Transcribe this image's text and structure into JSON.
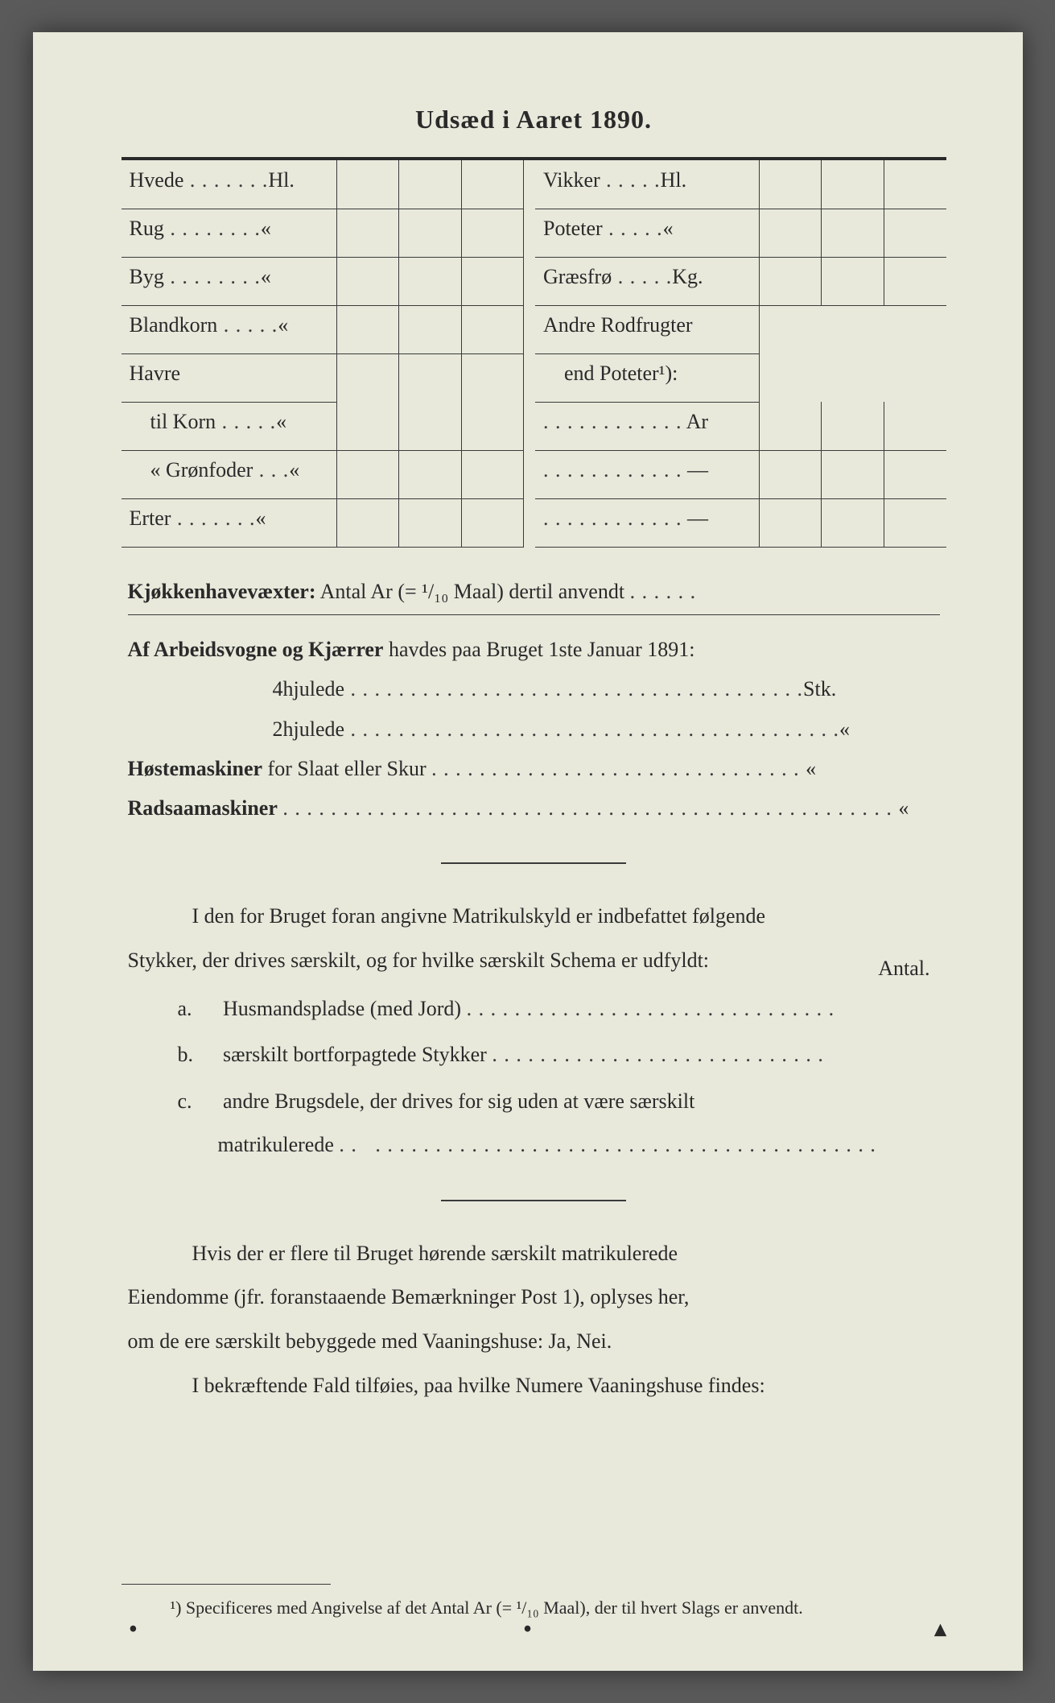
{
  "title": "Udsæd i Aaret 1890.",
  "table": {
    "left": [
      {
        "label": "Hvede",
        "unit": "Hl."
      },
      {
        "label": "Rug",
        "unit": "«"
      },
      {
        "label": "Byg",
        "unit": "«"
      },
      {
        "label": "Blandkorn",
        "unit": "«"
      },
      {
        "label": "Havre",
        "unit": ""
      },
      {
        "label": "til Korn",
        "unit": "«",
        "indent": true
      },
      {
        "label": "«  Grønfoder",
        "unit": "«",
        "indent": true
      },
      {
        "label": "Erter",
        "unit": "«"
      }
    ],
    "right": [
      {
        "label": "Vikker",
        "unit": "Hl."
      },
      {
        "label": "Poteter",
        "unit": "«"
      },
      {
        "label": "Græsfrø",
        "unit": "Kg."
      },
      {
        "label": "Andre Rodfrugter",
        "unit": ""
      },
      {
        "label": "end Poteter¹):",
        "unit": "",
        "indent": true
      },
      {
        "label": "",
        "unit": "Ar",
        "dotted": true
      },
      {
        "label": "",
        "unit": "—",
        "dotted": true
      },
      {
        "label": "",
        "unit": "—",
        "dotted": true
      }
    ]
  },
  "kjokken_label": "Kjøkkenhavevæxter:",
  "kjokken_text": "Antal Ar (= ¹/₁₀ Maal) dertil anvendt",
  "arbeids_label": "Af Arbeidsvogne og Kjærrer",
  "arbeids_text": "havdes paa Bruget 1ste Januar 1891:",
  "hjul4": "4hjulede",
  "hjul4_unit": "Stk.",
  "hjul2": "2hjulede",
  "hjul2_unit": "«",
  "hoste_label": "Høstemaskiner",
  "hoste_text": "for Slaat eller Skur",
  "hoste_unit": "«",
  "rad_label": "Radsaamaskiner",
  "rad_unit": "«",
  "para1a": "I den for Bruget foran angivne Matrikulskyld er indbefattet følgende",
  "para1b": "Stykker, der drives særskilt, og for hvilke særskilt Schema er udfyldt:",
  "antal": "Antal.",
  "item_a_letter": "a.",
  "item_a": "Husmandspladse (med Jord)",
  "item_b_letter": "b.",
  "item_b": "særskilt bortforpagtede Stykker",
  "item_c_letter": "c.",
  "item_c1": "andre Brugsdele,",
  "item_c2": "der drives for sig uden at være særskilt",
  "item_c3": "matrikulerede",
  "para2a": "Hvis der er flere til Bruget hørende særskilt matrikulerede",
  "para2b": "Eiendomme (jfr. foranstaaende Bemærkninger Post 1), oplyses her,",
  "para2c_pre": "om",
  "para2c_mid": "de ere særskilt bebyggede med",
  "para2c_bold": "Vaaningshuse:",
  "para2c_end": "Ja, Nei.",
  "para3a": "I bekræftende Fald tilføies, paa",
  "para3b": "hvilke Numere",
  "para3c": "Vaaningshuse findes:",
  "footnote": "¹) Specificeres med Angivelse af det Antal Ar (= ¹/₁₀ Maal), der til hvert Slags er anvendt."
}
